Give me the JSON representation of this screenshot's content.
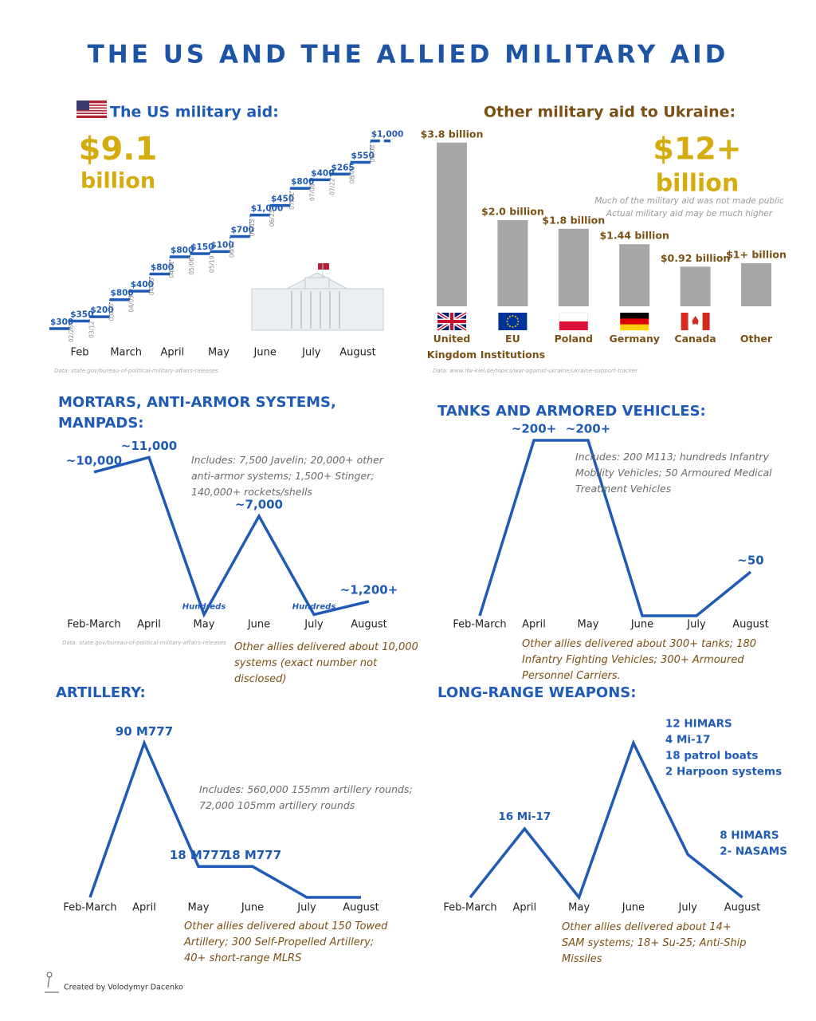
{
  "title": "THE US AND THE ALLIED MILITARY AID",
  "credit": "Created by Volodymyr Dacenko",
  "chart_data": [
    {
      "type": "step",
      "title": "The US military aid:",
      "total": "$9.1",
      "total_unit": "billion",
      "categories": [
        "Feb",
        "March",
        "April",
        "May",
        "June",
        "July",
        "August"
      ],
      "values": [
        300,
        350,
        200,
        800,
        400,
        800,
        800,
        150,
        100,
        700,
        1000,
        450,
        800,
        400,
        265,
        550,
        1000
      ],
      "value_labels": [
        "$300",
        "$350",
        "$200",
        "$800",
        "$400",
        "$800",
        "$800",
        "$150",
        "$100",
        "$700",
        "$1,000",
        "$450",
        "$800",
        "$400",
        "$265",
        "$550",
        "$1,000"
      ],
      "dates": [
        null,
        "02/26",
        "03/12",
        "03/16",
        "04/05",
        "04/13",
        "04/21",
        "05/06",
        "05/19",
        "06/01",
        "06/15",
        "06/23",
        "07/01",
        "07/08",
        "07/22",
        "08/01",
        "08/08"
      ],
      "ylim": [
        0,
        9500
      ],
      "color": "#1f5bb5",
      "source": "Data: state.gov/bureau-of-political-military-affairs-releases"
    },
    {
      "type": "bar",
      "title": "Other military aid to Ukraine:",
      "total": "$12+",
      "total_unit": "billion",
      "notes": [
        "Much of the military aid was not made public",
        "Actual military aid may be much higher"
      ],
      "categories": [
        "United Kingdom",
        "EU Institutions",
        "Poland",
        "Germany",
        "Canada",
        "Other"
      ],
      "values": [
        3.8,
        2.0,
        1.8,
        1.44,
        0.92,
        1
      ],
      "value_labels": [
        "$3.8 billion",
        "$2.0 billion",
        "$1.8 billion",
        "$1.44 billion",
        "$0.92 billion",
        "$1+ billion"
      ],
      "ylim": [
        0,
        4
      ],
      "color": "#a6a6a6",
      "source": "Data: www.ifw-kiel.de/topics/war-against-ukraine/ukraine-support-tracker"
    },
    {
      "type": "line",
      "title": "MORTARS, ANTI-ARMOR SYSTEMS, MANPADS:",
      "categories": [
        "Feb-March",
        "April",
        "May",
        "June",
        "July",
        "August"
      ],
      "values": [
        10000,
        11000,
        300,
        7000,
        300,
        1200
      ],
      "value_labels": [
        "~10,000",
        "~11,000",
        "Hundreds",
        "~7,000",
        "Hundreds",
        "~1,200+"
      ],
      "ylim": [
        0,
        12000
      ],
      "color": "#1f5bb5",
      "note": "Includes:  7,500 Javelin; 20,000+ other anti-armor systems; 1,500+ Stinger; 140,000+  rockets/shells",
      "footnote": "Other allies delivered about 10,000 systems (exact number not disclosed)",
      "source": "Data: state.gov/bureau-of-political-military-affairs-releases"
    },
    {
      "type": "line",
      "title": "TANKS AND ARMORED VEHICLES:",
      "categories": [
        "Feb-March",
        "April",
        "May",
        "June",
        "July",
        "August"
      ],
      "values": [
        0,
        200,
        200,
        0,
        0,
        50
      ],
      "value_labels": [
        null,
        "~200+",
        "~200+",
        null,
        null,
        "~50"
      ],
      "ylim": [
        0,
        200
      ],
      "color": "#1f5bb5",
      "note": "Includes:  200 M113; hundreds Infantry Mobility Vehicles; 50 Armoured Medical Treatment Vehicles",
      "footnote": "Other allies delivered about 300+ tanks; 180 Infantry Fighting Vehicles; 300+ Armoured Personnel Carriers."
    },
    {
      "type": "line",
      "title": "ARTILLERY:",
      "categories": [
        "Feb-March",
        "April",
        "May",
        "June",
        "July",
        "August"
      ],
      "values": [
        0,
        90,
        18,
        18,
        0,
        0
      ],
      "value_labels": [
        null,
        "90 M777",
        "18 M777",
        "18 M777",
        null,
        null
      ],
      "ylim": [
        0,
        100
      ],
      "color": "#1f5bb5",
      "note": "Includes:  560,000 155mm artillery rounds; 72,000 105mm artillery rounds",
      "footnote": "Other allies delivered about 150 Towed Artillery; 300 Self-Propelled Artillery; 40+ short-range MLRS"
    },
    {
      "type": "line",
      "title": "LONG-RANGE WEAPONS:",
      "categories": [
        "Feb-March",
        "April",
        "May",
        "June",
        "July",
        "August"
      ],
      "values": [
        0,
        16,
        0,
        36,
        10,
        0
      ],
      "point_notes": [
        null,
        [
          "16 Mi-17"
        ],
        null,
        [
          "12 HIMARS",
          "4 Mi-17",
          "18 patrol boats",
          "2 Harpoon systems"
        ],
        [
          "8 HIMARS",
          "2- NASAMS"
        ],
        null
      ],
      "ylim": [
        0,
        40
      ],
      "color": "#1f5bb5",
      "footnote": "Other allies delivered about 14+ SAM systems; 18+ Su-25; Anti-Ship Missiles"
    }
  ]
}
